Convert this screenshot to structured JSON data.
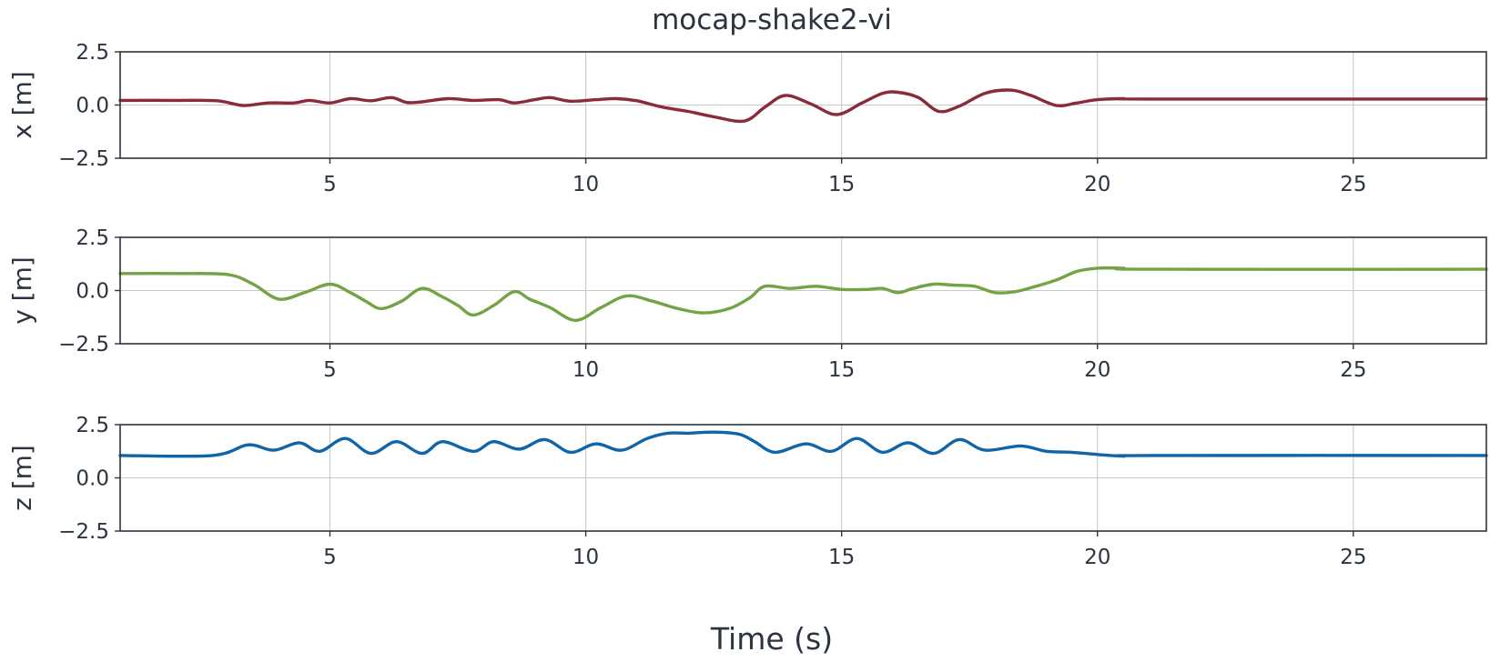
{
  "chart_data": {
    "type": "line",
    "title": "mocap-shake2-vi",
    "xlabel": "Time (s)",
    "xlim": [
      0.9,
      27.6
    ],
    "xticks": [
      5,
      10,
      15,
      20,
      25
    ],
    "xtick_labels": [
      "5",
      "10",
      "15",
      "20",
      "25"
    ],
    "grid": true,
    "panels": [
      {
        "ylabel": "x [m]",
        "ylim": [
          -2.5,
          2.5
        ],
        "yticks": [
          -2.5,
          0.0,
          2.5
        ],
        "ytick_labels": [
          "−2.5",
          "0.0",
          "2.5"
        ],
        "color": "#8b2a3a",
        "x": [
          0.9,
          2.0,
          2.8,
          3.3,
          3.8,
          4.3,
          4.6,
          5.0,
          5.4,
          5.8,
          6.2,
          6.5,
          6.8,
          7.3,
          7.8,
          8.3,
          8.6,
          9.0,
          9.3,
          9.7,
          10.2,
          10.6,
          11.0,
          11.5,
          12.0,
          12.5,
          13.1,
          13.5,
          13.9,
          14.4,
          14.9,
          15.4,
          15.8,
          16.1,
          16.5,
          16.9,
          17.3,
          17.8,
          18.3,
          18.7,
          19.2,
          19.6,
          20.0,
          20.5,
          21.0,
          27.6
        ],
        "y": [
          0.22,
          0.22,
          0.2,
          -0.02,
          0.1,
          0.1,
          0.22,
          0.1,
          0.3,
          0.2,
          0.35,
          0.12,
          0.15,
          0.3,
          0.22,
          0.25,
          0.1,
          0.25,
          0.35,
          0.18,
          0.25,
          0.3,
          0.2,
          -0.1,
          -0.3,
          -0.55,
          -0.75,
          -0.1,
          0.45,
          0.05,
          -0.45,
          0.1,
          0.55,
          0.6,
          0.35,
          -0.3,
          -0.05,
          0.55,
          0.7,
          0.45,
          -0.02,
          0.1,
          0.25,
          0.3,
          0.28,
          0.28
        ]
      },
      {
        "ylabel": "y [m]",
        "ylim": [
          -2.5,
          2.5
        ],
        "yticks": [
          -2.5,
          0.0,
          2.5
        ],
        "ytick_labels": [
          "−2.5",
          "0.0",
          "2.5"
        ],
        "color": "#74a346",
        "x": [
          0.9,
          2.0,
          3.0,
          3.5,
          4.0,
          4.5,
          5.0,
          5.4,
          5.7,
          6.0,
          6.4,
          6.8,
          7.2,
          7.5,
          7.8,
          8.2,
          8.6,
          8.9,
          9.3,
          9.8,
          10.3,
          10.8,
          11.3,
          11.8,
          12.3,
          12.8,
          13.2,
          13.5,
          14.0,
          14.5,
          15.0,
          15.5,
          15.8,
          16.1,
          16.4,
          16.8,
          17.2,
          17.6,
          18.0,
          18.4,
          18.8,
          19.2,
          19.6,
          20.0,
          20.5,
          21.0,
          27.6
        ],
        "y": [
          0.8,
          0.8,
          0.75,
          0.3,
          -0.4,
          -0.1,
          0.3,
          -0.1,
          -0.5,
          -0.85,
          -0.5,
          0.1,
          -0.3,
          -0.7,
          -1.15,
          -0.7,
          -0.05,
          -0.4,
          -0.8,
          -1.4,
          -0.8,
          -0.25,
          -0.5,
          -0.85,
          -1.05,
          -0.85,
          -0.35,
          0.2,
          0.1,
          0.2,
          0.05,
          0.05,
          0.1,
          -0.1,
          0.1,
          0.3,
          0.25,
          0.2,
          -0.1,
          -0.05,
          0.2,
          0.5,
          0.9,
          1.05,
          1.05,
          1.0,
          1.0
        ]
      },
      {
        "ylabel": "z [m]",
        "ylim": [
          -2.5,
          2.5
        ],
        "yticks": [
          -2.5,
          0.0,
          2.5
        ],
        "ytick_labels": [
          "−2.5",
          "0.0",
          "2.5"
        ],
        "color": "#1065a8",
        "x": [
          0.9,
          2.7,
          3.4,
          3.9,
          4.4,
          4.8,
          5.3,
          5.8,
          6.3,
          6.8,
          7.2,
          7.8,
          8.2,
          8.7,
          9.2,
          9.7,
          10.2,
          10.7,
          11.2,
          11.6,
          12.0,
          12.5,
          13.0,
          13.3,
          13.7,
          14.3,
          14.8,
          15.3,
          15.8,
          16.3,
          16.8,
          17.3,
          17.8,
          18.5,
          19.0,
          19.5,
          20.0,
          20.5,
          21.0,
          27.6
        ],
        "y": [
          1.05,
          1.05,
          1.55,
          1.3,
          1.65,
          1.25,
          1.85,
          1.15,
          1.7,
          1.15,
          1.7,
          1.25,
          1.7,
          1.35,
          1.8,
          1.2,
          1.6,
          1.3,
          1.85,
          2.1,
          2.1,
          2.15,
          2.05,
          1.7,
          1.2,
          1.6,
          1.25,
          1.85,
          1.2,
          1.65,
          1.15,
          1.8,
          1.3,
          1.5,
          1.25,
          1.2,
          1.1,
          1.02,
          1.05,
          1.05
        ]
      }
    ]
  }
}
